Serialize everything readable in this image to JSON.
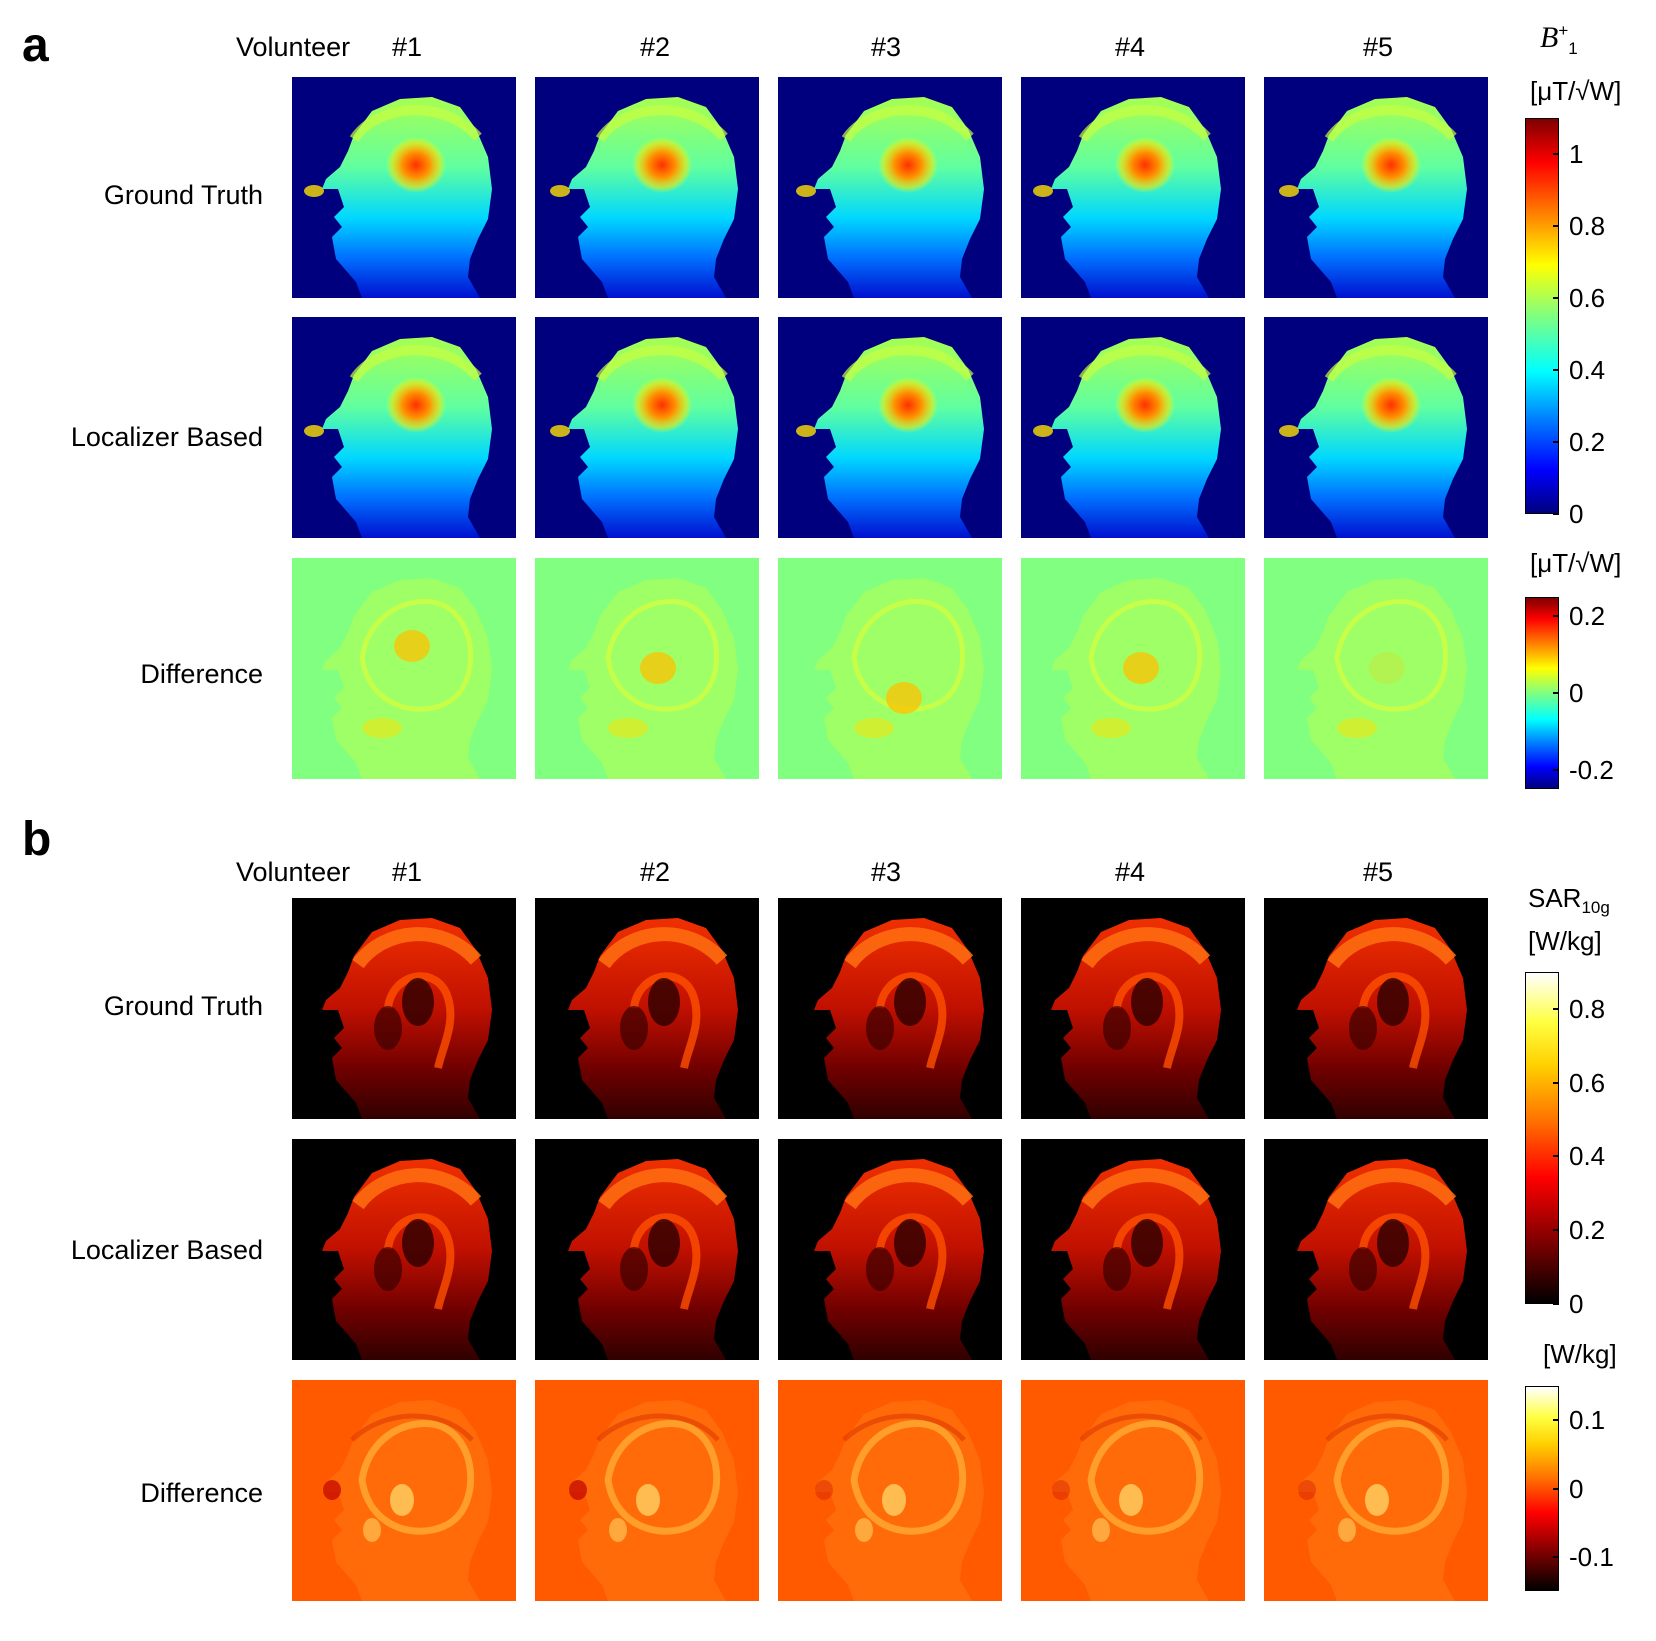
{
  "panel_a": {
    "letter": "a",
    "volunteer_label": "Volunteer",
    "volunteers": [
      "#1",
      "#2",
      "#3",
      "#4",
      "#5"
    ],
    "rows": [
      "Ground Truth",
      "Localizer Based",
      "Difference"
    ],
    "colorbar_main": {
      "symbol": "B",
      "symbol_sup": "+",
      "symbol_sub": "1",
      "unit": "[μT/√W]",
      "ticks": [
        "1",
        "0.8",
        "0.6",
        "0.4",
        "0.2",
        "0"
      ],
      "range": [
        0,
        1.1
      ],
      "colormap": "jet"
    },
    "colorbar_diff": {
      "unit": "[μT/√W]",
      "ticks": [
        "0.2",
        "0",
        "-0.2"
      ],
      "range": [
        -0.25,
        0.25
      ],
      "colormap": "jet"
    }
  },
  "panel_b": {
    "letter": "b",
    "volunteer_label": "Volunteer",
    "volunteers": [
      "#1",
      "#2",
      "#3",
      "#4",
      "#5"
    ],
    "rows": [
      "Ground Truth",
      "Localizer Based",
      "Difference"
    ],
    "colorbar_main": {
      "symbol": "SAR",
      "symbol_sub": "10g",
      "unit": "[W/kg]",
      "ticks": [
        "0.8",
        "0.6",
        "0.4",
        "0.2",
        "0"
      ],
      "range": [
        0,
        0.9
      ],
      "colormap": "hot"
    },
    "colorbar_diff": {
      "unit": "[W/kg]",
      "ticks": [
        "0.1",
        "0",
        "-0.1"
      ],
      "range": [
        -0.15,
        0.15
      ],
      "colormap": "hot"
    }
  },
  "colors": {
    "jet_background": "#00007f",
    "jet_diff_background": "#80ff80",
    "hot_background": "#000000",
    "hot_diff_background": "#ff5a00"
  }
}
